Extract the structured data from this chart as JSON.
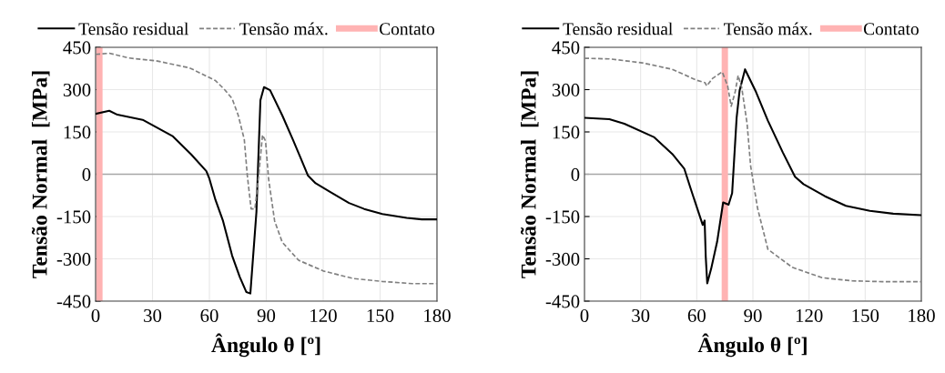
{
  "chart_data": [
    {
      "type": "line",
      "xlabel": "Ângulo θ [º]",
      "ylabel": "Tensão Normal  [MPa]",
      "xlim": [
        0,
        180
      ],
      "xticks": [
        0,
        30,
        60,
        90,
        120,
        150,
        180
      ],
      "ylim": [
        -450,
        450
      ],
      "yticks": [
        -450,
        -300,
        -150,
        0,
        150,
        300,
        450
      ],
      "grid": true,
      "legend": "top",
      "series": [
        {
          "name": "Tensão residual",
          "color": "#000000",
          "line_style": "solid",
          "x": [
            0,
            7.2,
            11.5,
            24.8,
            40.8,
            50.4,
            58.4,
            60,
            63.2,
            67.2,
            72,
            76,
            79.5,
            81.6,
            84.8,
            86.9,
            88.8,
            92,
            98.4,
            104,
            108,
            112,
            116,
            124,
            133.6,
            141.6,
            151.2,
            164,
            172,
            180
          ],
          "values": [
            214,
            225,
            211,
            193,
            134,
            70,
            11,
            -16,
            -91,
            -166,
            -289,
            -364,
            -418,
            -423,
            -134,
            262,
            309,
            298,
            209,
            123,
            59,
            -5,
            -32,
            -64,
            -102,
            -123,
            -141,
            -155,
            -160,
            -160
          ]
        },
        {
          "name": "Tensão máx.",
          "color": "#808080",
          "line_style": "dashed",
          "x": [
            0,
            7.2,
            17.6,
            32,
            49.6,
            63.2,
            68,
            72,
            75.2,
            78.4,
            80,
            82,
            84,
            86,
            88,
            89.6,
            91.2,
            94.4,
            98.4,
            107,
            120,
            136,
            151,
            167,
            180
          ],
          "values": [
            425,
            429,
            412,
            402,
            377,
            332,
            300,
            268,
            209,
            123,
            -5,
            -123,
            -123,
            -5,
            139,
            118,
            -16,
            -166,
            -241,
            -305,
            -343,
            -370,
            -380,
            -388,
            -388
          ]
        }
      ],
      "ref_lines": [
        {
          "axis": "x",
          "value": 2,
          "label": "Contato",
          "color": "#ffb3b3"
        },
        {
          "axis": "y",
          "value": 0,
          "color": "#a6a6a6"
        }
      ]
    },
    {
      "type": "line",
      "xlabel": "Ângulo θ [º]",
      "ylabel": "Tensão Normal  [MPa]",
      "xlim": [
        0,
        180
      ],
      "xticks": [
        0,
        30,
        60,
        90,
        120,
        150,
        180
      ],
      "ylim": [
        -450,
        450
      ],
      "yticks": [
        -450,
        -300,
        -150,
        0,
        150,
        300,
        450
      ],
      "grid": true,
      "legend": "top",
      "series": [
        {
          "name": "Tensão residual",
          "color": "#000000",
          "line_style": "solid",
          "x": [
            0,
            13.3,
            21.3,
            37.3,
            46.9,
            53.3,
            56.5,
            59.7,
            63.2,
            64.2,
            64.8,
            65.6,
            67.7,
            70.9,
            74.1,
            77,
            78.9,
            81.3,
            82.9,
            85.8,
            91.7,
            98,
            106,
            112.5,
            117,
            128.5,
            139.7,
            152.5,
            165,
            180
          ],
          "values": [
            200,
            195,
            179,
            131,
            72,
            20,
            -46,
            -110,
            -180,
            -164,
            -292,
            -387,
            -335,
            -239,
            -100,
            -108,
            -67,
            200,
            297,
            372,
            291,
            190,
            77,
            -9,
            -35,
            -78,
            -112,
            -130,
            -140,
            -145
          ]
        },
        {
          "name": "Tensão máx.",
          "color": "#808080",
          "line_style": "dashed",
          "x": [
            0,
            13.3,
            30.9,
            46.9,
            59.7,
            64.5,
            65.3,
            68.5,
            73.6,
            76.5,
            78.4,
            80.5,
            82.1,
            84,
            86.9,
            88.8,
            92.5,
            98,
            111,
            127,
            143,
            159,
            180
          ],
          "values": [
            411,
            409,
            395,
            372,
            334,
            324,
            313,
            340,
            363,
            313,
            241,
            291,
            350,
            308,
            179,
            29,
            -121,
            -266,
            -330,
            -367,
            -378,
            -381,
            -381
          ]
        }
      ],
      "ref_lines": [
        {
          "axis": "x",
          "value": 75,
          "label": "Contato",
          "color": "#ffb3b3"
        },
        {
          "axis": "y",
          "value": 0,
          "color": "#a6a6a6"
        }
      ]
    }
  ]
}
